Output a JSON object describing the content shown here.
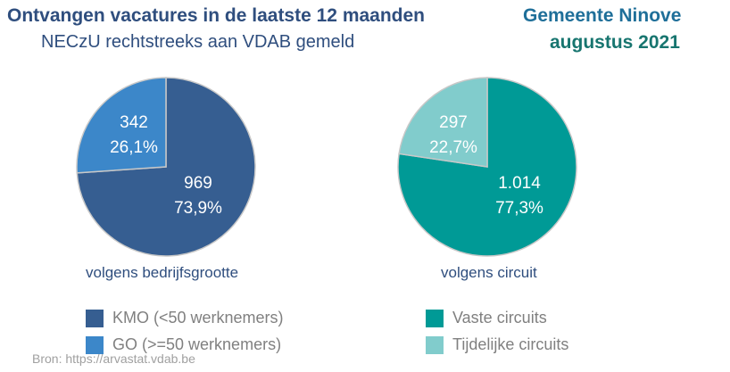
{
  "header": {
    "title": "Ontvangen vacatures in de laatste 12 maanden",
    "subtitle": "NECzU rechtstreeks aan VDAB gemeld",
    "region": "Gemeente Ninove",
    "period": "augustus 2021"
  },
  "source": "Bron: https://arvastat.vdab.be",
  "chart_data": [
    {
      "type": "pie",
      "caption": "volgens bedrijfsgrootte",
      "slices": [
        {
          "name": "KMO (<50 werknemers)",
          "value": 969,
          "value_label": "969",
          "pct_label": "73,9%",
          "color": "#365e91"
        },
        {
          "name": "GO (>=50 werknemers)",
          "value": 342,
          "value_label": "342",
          "pct_label": "26,1%",
          "color": "#3c87c9"
        }
      ]
    },
    {
      "type": "pie",
      "caption": "volgens circuit",
      "slices": [
        {
          "name": "Vaste circuits",
          "value": 1014,
          "value_label": "1.014",
          "pct_label": "77,3%",
          "color": "#009a96"
        },
        {
          "name": "Tijdelijke circuits",
          "value": 297,
          "value_label": "297",
          "pct_label": "22,7%",
          "color": "#81cccc"
        }
      ]
    }
  ]
}
